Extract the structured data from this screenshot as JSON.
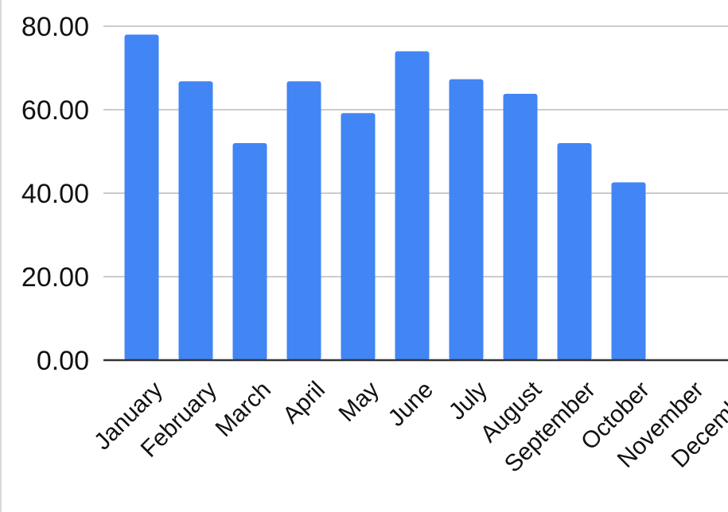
{
  "chart_data": {
    "type": "bar",
    "title": "",
    "xlabel": "",
    "ylabel": "",
    "categories": [
      "January",
      "February",
      "March",
      "April",
      "May",
      "June",
      "July",
      "August",
      "September",
      "October",
      "November",
      "December"
    ],
    "values": [
      78,
      66.8,
      52,
      66.8,
      59.2,
      74,
      67.3,
      63.8,
      52,
      42.6,
      null,
      null
    ],
    "ylim": [
      0,
      80
    ],
    "y_ticks": [
      "0.00",
      "20.00",
      "40.00",
      "60.00",
      "80.00"
    ],
    "y_tick_values": [
      0,
      20,
      40,
      60,
      80
    ],
    "grid": true,
    "legend": "none",
    "colors": {
      "bar": "#4285f4",
      "grid": "#cccccc",
      "axis": "#333333"
    }
  }
}
